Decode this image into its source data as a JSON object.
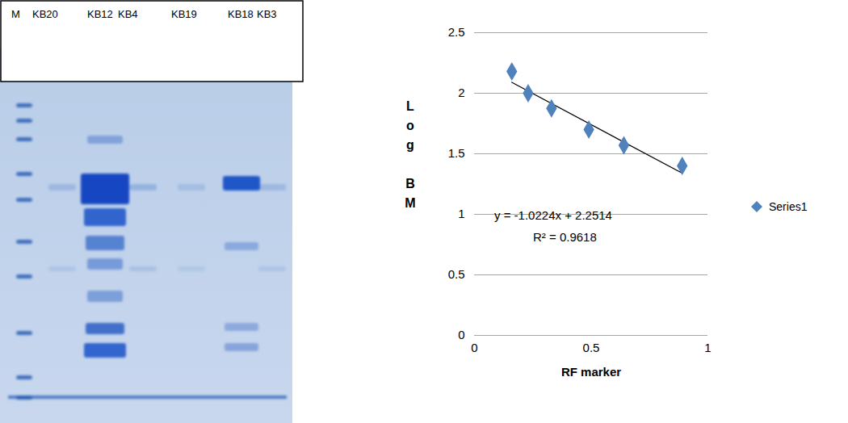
{
  "gel": {
    "lane_labels": [
      "M",
      "KB20",
      "KB12",
      "KB4",
      "KB19",
      "KB18",
      "KB3"
    ]
  },
  "chart_data": {
    "type": "scatter",
    "x_label": "RF marker",
    "y_label": "Log BM",
    "series": [
      {
        "name": "Series1",
        "color": "#4f81bd",
        "marker": "diamond",
        "x": [
          0.16,
          0.23,
          0.33,
          0.49,
          0.64,
          0.89
        ],
        "values": [
          2.18,
          2.0,
          1.875,
          1.7,
          1.57,
          1.4
        ]
      }
    ],
    "trendline": {
      "color": "#000000",
      "x": [
        0.16,
        0.89
      ],
      "values": [
        2.09,
        1.34
      ]
    },
    "annotations": [
      "y = -1.0224x + 2.2514",
      "R² = 0.9618"
    ],
    "xlim": [
      0,
      1
    ],
    "xticks": [
      0,
      0.5,
      1
    ],
    "ylim": [
      0,
      2.5
    ],
    "yticks": [
      0,
      0.5,
      1,
      1.5,
      2,
      2.5
    ],
    "grid": true,
    "legend": "right"
  }
}
